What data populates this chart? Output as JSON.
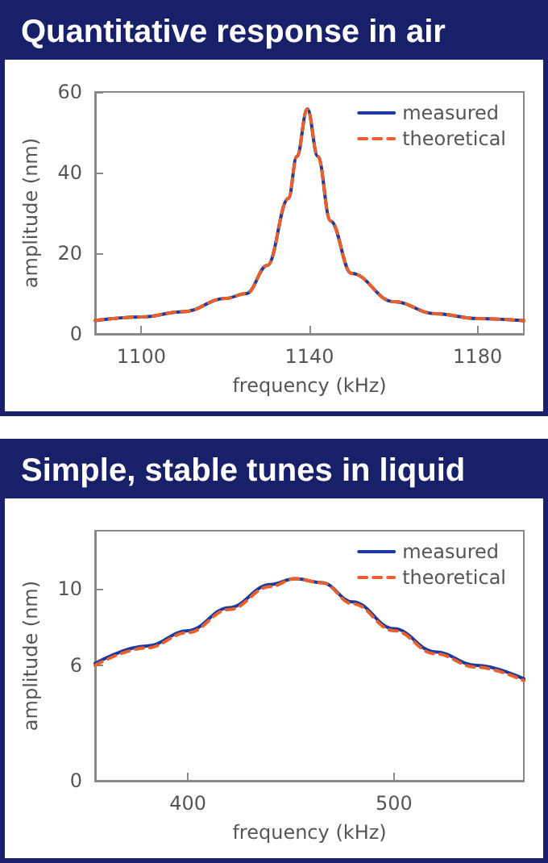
{
  "chart_data": [
    {
      "type": "line",
      "title": "Quantitative response in air",
      "xlabel": "frequency (kHz)",
      "ylabel": "amplitude (nm)",
      "xlim": [
        1089,
        1191
      ],
      "xticks": [
        1100,
        1140,
        1180
      ],
      "ylim": [
        0,
        60
      ],
      "yticks": [
        0,
        20,
        40,
        60
      ],
      "grid": false,
      "legend": "top right",
      "marker": "none",
      "series": [
        {
          "name": "measured",
          "color": "#1c3a9e",
          "line_style": "solid",
          "x": [
            1089,
            1100,
            1110,
            1120,
            1125,
            1130,
            1135,
            1137,
            1139.5,
            1142,
            1145,
            1150,
            1160,
            1170,
            1180,
            1191
          ],
          "values": [
            3.3,
            4.2,
            5.5,
            8.8,
            10,
            17,
            33.6,
            44,
            55.8,
            44,
            28,
            15,
            8,
            5,
            3.8,
            3.3
          ]
        },
        {
          "name": "theoretical",
          "color": "#e8602c",
          "line_style": "dashed",
          "x": [
            1089,
            1100,
            1110,
            1120,
            1125,
            1130,
            1135,
            1137,
            1139.5,
            1142,
            1145,
            1150,
            1160,
            1170,
            1180,
            1191
          ],
          "values": [
            3.3,
            4.2,
            5.5,
            8.8,
            10,
            17,
            33.6,
            44,
            55.8,
            44,
            28,
            15,
            8,
            5,
            3.8,
            3.3
          ]
        }
      ]
    },
    {
      "type": "line",
      "title": "Simple, stable tunes in liquid",
      "xlabel": "frequency (kHz)",
      "ylabel": "amplitude (nm)",
      "xlim": [
        355,
        563
      ],
      "xticks": [
        400,
        500
      ],
      "ylim": [
        0,
        13
      ],
      "yticks": [
        0,
        6,
        10
      ],
      "grid": false,
      "legend": "top right",
      "marker": "none",
      "series": [
        {
          "name": "measured",
          "color": "#1c3a9e",
          "line_style": "solid",
          "x": [
            355,
            380,
            400,
            420,
            440,
            452,
            465,
            480,
            500,
            520,
            540,
            563
          ],
          "values": [
            6.1,
            7.0,
            7.8,
            9.0,
            10.2,
            10.5,
            10.3,
            9.3,
            7.9,
            6.7,
            6.0,
            5.3
          ]
        },
        {
          "name": "theoretical",
          "color": "#e8602c",
          "line_style": "dashed",
          "x": [
            355,
            380,
            400,
            420,
            440,
            452,
            465,
            480,
            500,
            520,
            540,
            563
          ],
          "values": [
            6.0,
            6.9,
            7.7,
            8.9,
            10.1,
            10.5,
            10.3,
            9.2,
            7.8,
            6.6,
            5.9,
            5.2
          ]
        }
      ]
    }
  ]
}
